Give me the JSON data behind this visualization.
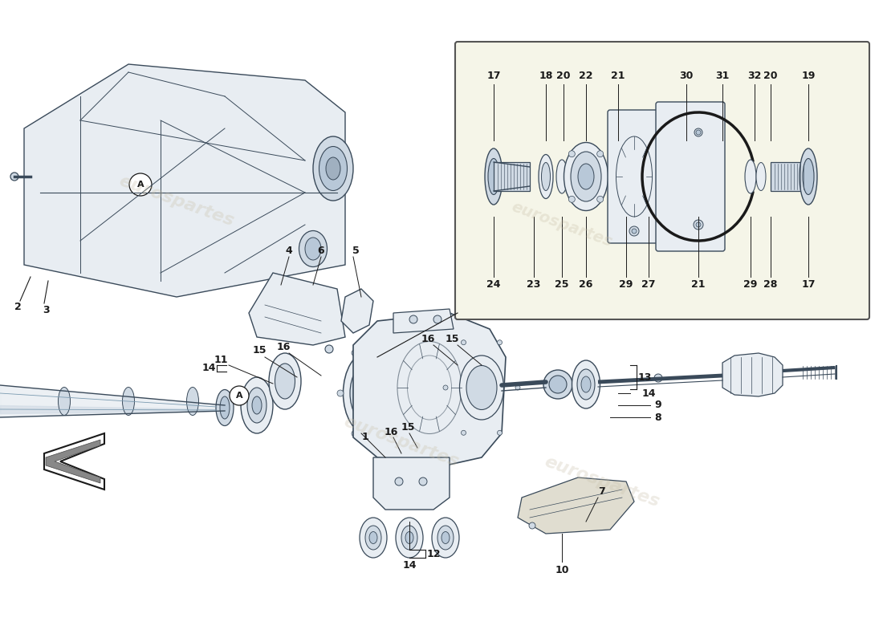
{
  "bg_color": "#ffffff",
  "line_color": "#1a1a1a",
  "sketch_color": "#3a4a5a",
  "sketch_light": "#7a9ab0",
  "fill_light": "#e8edf2",
  "fill_mid": "#d0dae4",
  "fill_dark": "#b8c8d8",
  "watermark_text1": "eurospartes",
  "watermark_text2": "eurospartes",
  "watermark_color": "#c8bfa8",
  "watermark_alpha": 0.3,
  "label_fs": 9,
  "inset_bg": "#f5f5e8",
  "inset_border": "#555555"
}
